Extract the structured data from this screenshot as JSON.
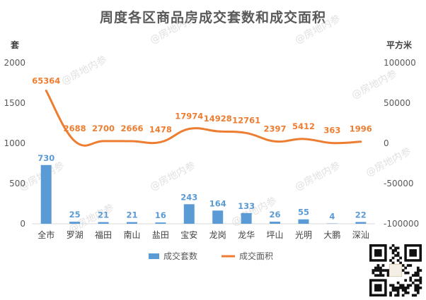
{
  "watermark_text": "@房地内参",
  "chart_data": {
    "type": "bar+line",
    "title": "周度各区商品房成交套数和成交面积",
    "left_axis_unit": "套",
    "right_axis_unit": "平方米",
    "categories": [
      "全市",
      "罗湖",
      "福田",
      "南山",
      "盐田",
      "宝安",
      "龙岗",
      "龙华",
      "坪山",
      "光明",
      "大鹏",
      "深汕"
    ],
    "series": [
      {
        "name": "成交套数",
        "kind": "bar",
        "axis": "left",
        "color": "#5b9bd5",
        "values": [
          730,
          25,
          21,
          21,
          16,
          243,
          164,
          133,
          26,
          55,
          4,
          22
        ]
      },
      {
        "name": "成交面积",
        "kind": "line",
        "axis": "right",
        "color": "#ed7d31",
        "values": [
          65364,
          2688,
          2700,
          2666,
          1478,
          17974,
          14928,
          12761,
          2397,
          5412,
          363,
          1996
        ]
      }
    ],
    "left_ylim": [
      0,
      2000
    ],
    "left_ticks": [
      0,
      500,
      1000,
      1500,
      2000
    ],
    "right_ylim": [
      -100000,
      100000
    ],
    "right_ticks": [
      -100000,
      -50000,
      0,
      50000,
      100000
    ],
    "right_tick_labels": [
      "-100000",
      "-50000",
      "0",
      "50000",
      "100000"
    ],
    "grid": false,
    "legend_position": "bottom"
  }
}
